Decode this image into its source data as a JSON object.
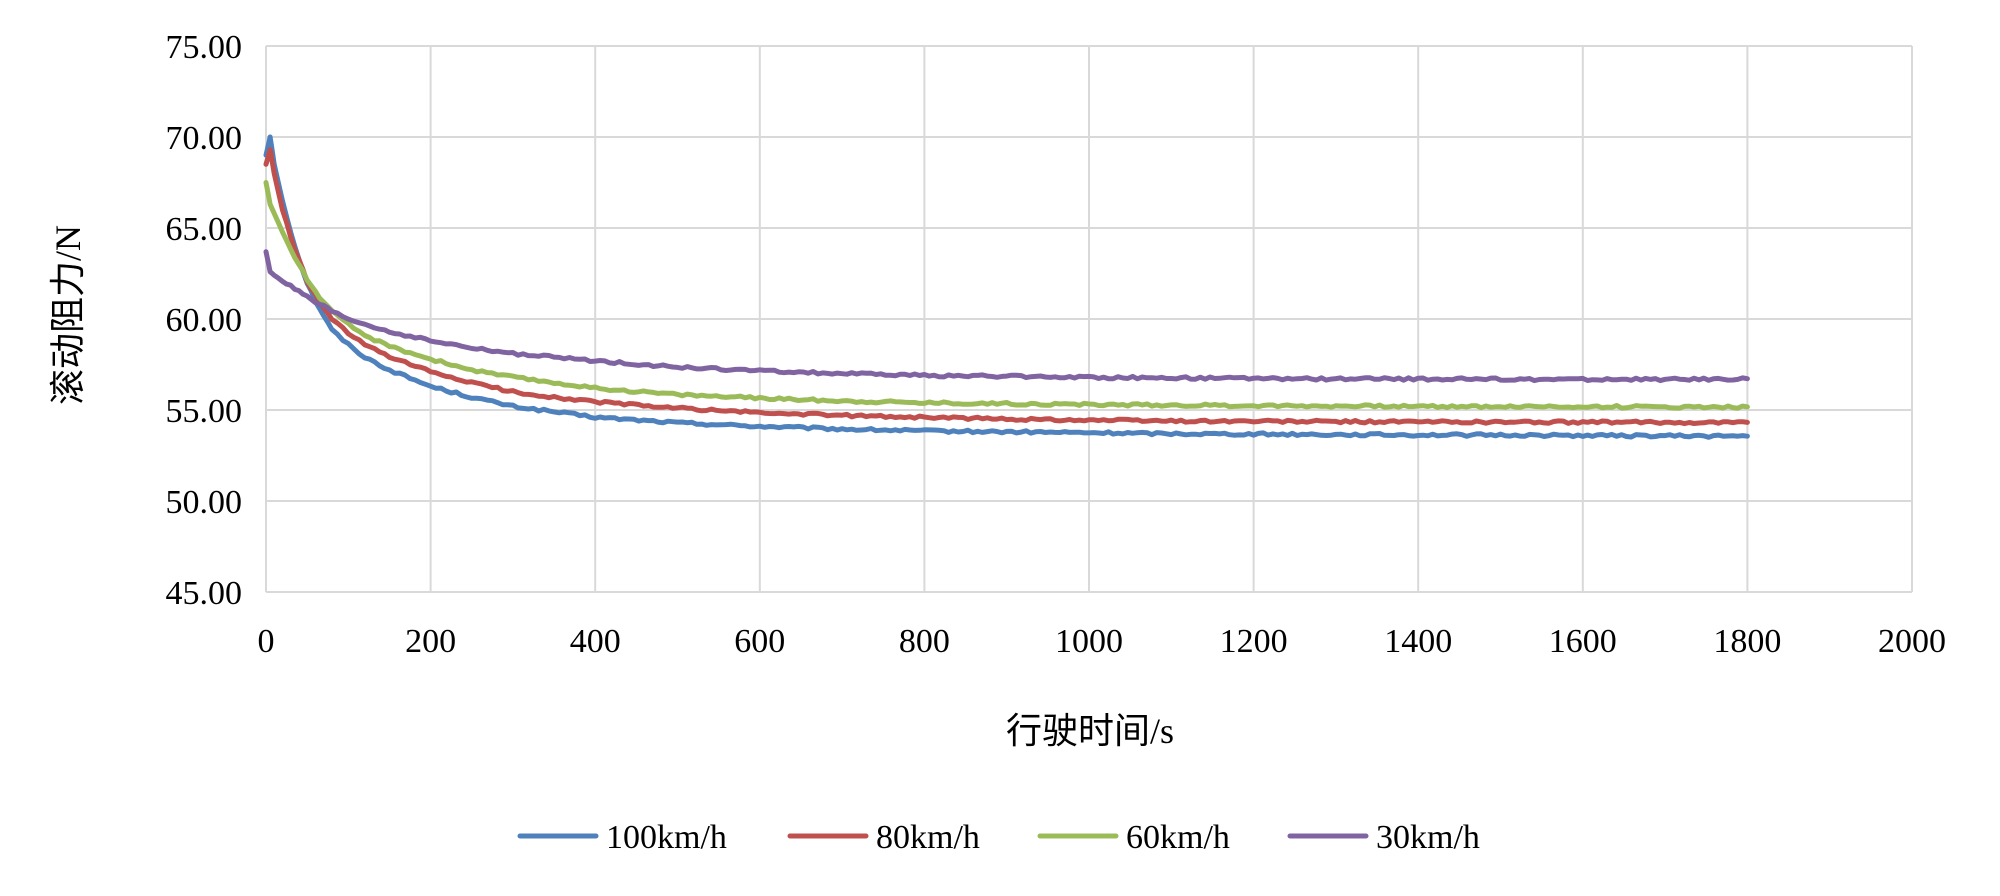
{
  "chart_data": {
    "type": "line",
    "title": "",
    "xlabel": "行驶时间/s",
    "ylabel": "滚动阻力/N",
    "xlim": [
      0,
      2000
    ],
    "ylim": [
      45,
      75
    ],
    "xticks": [
      0,
      200,
      400,
      600,
      800,
      1000,
      1200,
      1400,
      1600,
      1800,
      2000
    ],
    "yticks": [
      45,
      50,
      55,
      60,
      65,
      70,
      75
    ],
    "xtick_labels": [
      "0",
      "200",
      "400",
      "600",
      "800",
      "1000",
      "1200",
      "1400",
      "1600",
      "1800",
      "2000"
    ],
    "ytick_labels": [
      "45.00",
      "50.00",
      "55.00",
      "60.00",
      "65.00",
      "70.00",
      "75.00"
    ],
    "grid": true,
    "legend_position": "bottom",
    "series": [
      {
        "name": "100km/h",
        "color": "#4f81bd",
        "x": [
          0,
          5,
          10,
          20,
          30,
          40,
          50,
          60,
          70,
          80,
          100,
          120,
          150,
          200,
          250,
          300,
          350,
          400,
          500,
          600,
          700,
          800,
          900,
          1000,
          1100,
          1200,
          1300,
          1400,
          1500,
          1600,
          1700,
          1800
        ],
        "y": [
          69.0,
          70.0,
          68.5,
          66.5,
          64.8,
          63.3,
          62.0,
          61.0,
          60.2,
          59.4,
          58.6,
          57.9,
          57.2,
          56.3,
          55.7,
          55.2,
          54.9,
          54.6,
          54.3,
          54.1,
          53.95,
          53.85,
          53.8,
          53.75,
          53.7,
          53.68,
          53.65,
          53.63,
          53.62,
          53.6,
          53.58,
          53.56
        ]
      },
      {
        "name": "80km/h",
        "color": "#c0504d",
        "x": [
          0,
          5,
          10,
          20,
          30,
          40,
          50,
          60,
          70,
          80,
          100,
          120,
          150,
          200,
          250,
          300,
          350,
          400,
          500,
          600,
          700,
          800,
          900,
          1000,
          1100,
          1200,
          1300,
          1400,
          1500,
          1600,
          1700,
          1800
        ],
        "y": [
          68.5,
          69.3,
          68.0,
          66.0,
          64.5,
          63.2,
          62.1,
          61.3,
          60.6,
          60.0,
          59.2,
          58.6,
          57.9,
          57.1,
          56.5,
          56.0,
          55.7,
          55.45,
          55.1,
          54.85,
          54.7,
          54.6,
          54.5,
          54.45,
          54.4,
          54.38,
          54.36,
          54.35,
          54.34,
          54.33,
          54.32,
          54.32
        ]
      },
      {
        "name": "60km/h",
        "color": "#9bbb59",
        "x": [
          0,
          5,
          10,
          20,
          30,
          40,
          50,
          60,
          70,
          80,
          100,
          120,
          150,
          200,
          250,
          300,
          350,
          400,
          500,
          600,
          700,
          800,
          900,
          1000,
          1100,
          1200,
          1300,
          1400,
          1500,
          1600,
          1700,
          1800
        ],
        "y": [
          67.5,
          66.3,
          65.8,
          64.8,
          63.8,
          63.0,
          62.2,
          61.5,
          60.9,
          60.4,
          59.7,
          59.1,
          58.5,
          57.8,
          57.2,
          56.8,
          56.5,
          56.2,
          55.85,
          55.65,
          55.5,
          55.4,
          55.35,
          55.3,
          55.27,
          55.24,
          55.22,
          55.2,
          55.19,
          55.18,
          55.17,
          55.17
        ]
      },
      {
        "name": "30km/h",
        "color": "#8064a2",
        "x": [
          0,
          5,
          10,
          20,
          30,
          40,
          50,
          60,
          70,
          80,
          100,
          120,
          150,
          200,
          250,
          300,
          350,
          400,
          500,
          600,
          700,
          800,
          900,
          1000,
          1100,
          1200,
          1300,
          1400,
          1500,
          1600,
          1700,
          1800
        ],
        "y": [
          63.7,
          62.6,
          62.4,
          62.1,
          61.8,
          61.5,
          61.2,
          60.9,
          60.7,
          60.4,
          60.0,
          59.7,
          59.3,
          58.8,
          58.4,
          58.1,
          57.9,
          57.7,
          57.35,
          57.15,
          57.0,
          56.9,
          56.85,
          56.8,
          56.76,
          56.73,
          56.71,
          56.7,
          56.69,
          56.68,
          56.68,
          56.72
        ]
      }
    ]
  }
}
